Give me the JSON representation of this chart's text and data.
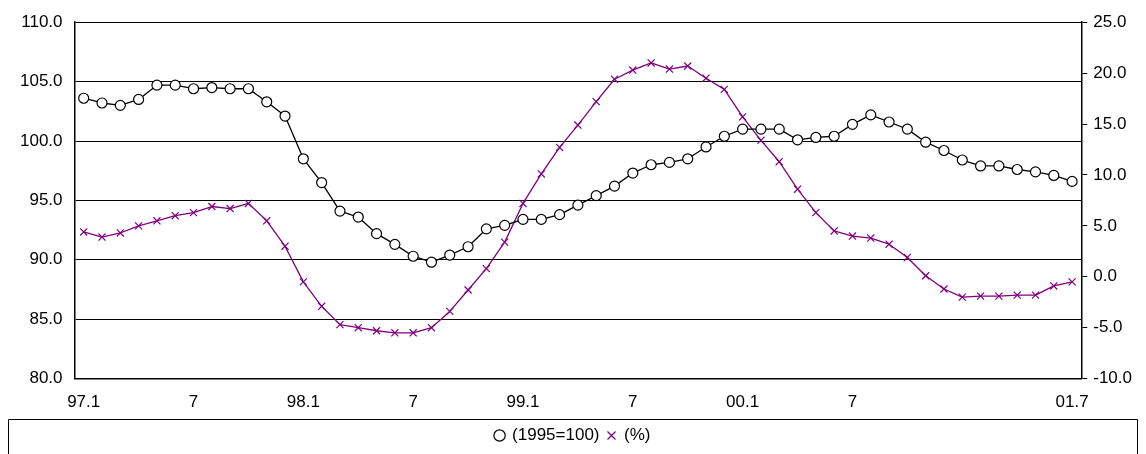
{
  "chart_data": {
    "type": "line",
    "categories": [
      "97.1",
      null,
      null,
      null,
      null,
      null,
      "7",
      null,
      null,
      null,
      null,
      null,
      "98.1",
      null,
      null,
      null,
      null,
      null,
      "7",
      null,
      null,
      null,
      null,
      null,
      "99.1",
      null,
      null,
      null,
      null,
      null,
      "7",
      null,
      null,
      null,
      null,
      null,
      "00.1",
      null,
      null,
      null,
      null,
      null,
      "7",
      null,
      null,
      null,
      null,
      null,
      null,
      null,
      null,
      null,
      null,
      null,
      "01.7"
    ],
    "series": [
      {
        "name": "(1995=100)",
        "color": "#000000",
        "marker": "circle",
        "values": [
          103.6,
          103.2,
          103.0,
          103.5,
          104.7,
          104.7,
          104.4,
          104.5,
          104.4,
          104.4,
          103.3,
          102.1,
          98.5,
          96.5,
          94.1,
          93.6,
          92.2,
          91.3,
          90.3,
          89.8,
          90.4,
          91.1,
          92.6,
          92.9,
          93.4,
          93.4,
          93.8,
          94.6,
          95.4,
          96.2,
          97.3,
          98.0,
          98.2,
          98.5,
          99.5,
          100.4,
          101.0,
          101.0,
          101.0,
          100.1,
          100.3,
          100.4,
          101.4,
          102.2,
          101.6,
          101.0,
          99.9,
          99.2,
          98.4,
          97.9,
          97.9,
          97.6,
          97.4,
          97.1,
          96.6
        ]
      },
      {
        "name": "(%)",
        "color": "#800080",
        "marker": "cross",
        "axis": "y2",
        "values": [
          4.4,
          3.9,
          4.3,
          5.0,
          5.5,
          6.0,
          6.3,
          6.9,
          6.7,
          7.2,
          5.5,
          3.0,
          -0.5,
          -2.9,
          -4.7,
          -5.0,
          -5.3,
          -5.5,
          -5.5,
          -5.0,
          -3.4,
          -1.3,
          0.8,
          3.4,
          7.2,
          10.1,
          12.7,
          14.9,
          17.2,
          19.4,
          20.3,
          21.0,
          20.4,
          20.7,
          19.5,
          18.4,
          15.7,
          13.4,
          11.3,
          8.6,
          6.3,
          4.5,
          4.0,
          3.8,
          3.2,
          1.9,
          0.1,
          -1.2,
          -2.0,
          -1.9,
          -1.9,
          -1.8,
          -1.8,
          -0.9,
          -0.5
        ]
      }
    ],
    "ylim": [
      80,
      110
    ],
    "yticks": [
      {
        "value": 80,
        "label": "80.0"
      },
      {
        "value": 85,
        "label": "85.0"
      },
      {
        "value": 90,
        "label": "90.0"
      },
      {
        "value": 95,
        "label": "95.0"
      },
      {
        "value": 100,
        "label": "100.0"
      },
      {
        "value": 105,
        "label": "105.0"
      },
      {
        "value": 110,
        "label": "110.0"
      }
    ],
    "y2lim": [
      -10,
      25
    ],
    "y2ticks": [
      {
        "value": -10,
        "label": "-10.0"
      },
      {
        "value": -5,
        "label": "-5.0"
      },
      {
        "value": 0,
        "label": "0.0"
      },
      {
        "value": 5,
        "label": "5.0"
      },
      {
        "value": 10,
        "label": "10.0"
      },
      {
        "value": 15,
        "label": "15.0"
      },
      {
        "value": 20,
        "label": "20.0"
      },
      {
        "value": 25,
        "label": "25.0"
      }
    ],
    "grid": "y",
    "legend": "bottom",
    "line_style": "solid"
  }
}
